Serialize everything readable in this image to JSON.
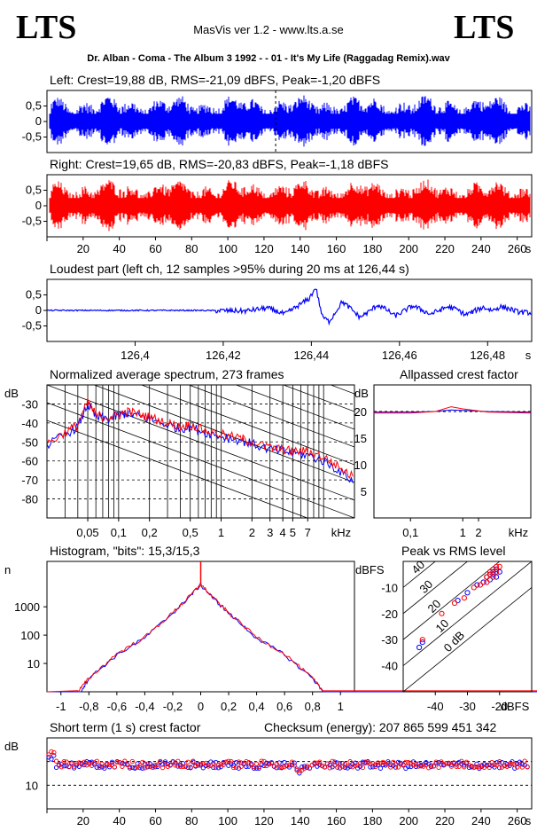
{
  "header": {
    "logo_left": "LTS",
    "logo_right": "LTS",
    "app_title": "MasVis ver 1.2 - www.lts.a.se",
    "file_title": "Dr. Alban - Coma - The Album 3 1992 -  - 01 - It's My Life (Raggadag Remix).wav"
  },
  "colors": {
    "left": "#0000ff",
    "right": "#ff0000",
    "axis": "#000000"
  },
  "panels": {
    "left_wave_title": "Left: Crest=19,88 dB, RMS=-21,09 dBFS, Peak=-1,20 dBFS",
    "right_wave_title": "Right: Crest=19,65 dB, RMS=-20,83 dBFS, Peak=-1,18 dBFS",
    "loudest_title": "Loudest part (left  ch, 12 samples >95% during 20 ms at 126,44 s)",
    "spectrum_title": "Normalized average spectrum, 273 frames",
    "allpass_title": "Allpassed crest factor",
    "histogram_title": "Histogram, \"bits\": 15,3/15,3",
    "peakrms_title": "Peak vs RMS level",
    "shortterm_title": "Short term (1 s) crest factor",
    "checksum_title": "Checksum (energy):  207 865 599 451 342"
  },
  "chart_data": [
    {
      "id": "left_waveform",
      "type": "area",
      "title": "Left: Crest=19,88 dB, RMS=-21,09 dBFS, Peak=-1,20 dBFS",
      "xlim": [
        0,
        268
      ],
      "ylim": [
        -1,
        1
      ],
      "y_ticks": [
        "0,5",
        "0",
        "-0,5"
      ],
      "marker_x": 126.44,
      "series": [
        {
          "name": "Left",
          "color": "#0000ff"
        }
      ]
    },
    {
      "id": "right_waveform",
      "type": "area",
      "title": "Right: Crest=19,65 dB, RMS=-20,83 dBFS, Peak=-1,18 dBFS",
      "xlim": [
        0,
        268
      ],
      "ylim": [
        -1,
        1
      ],
      "x_ticks": [
        "20",
        "40",
        "60",
        "80",
        "100",
        "120",
        "140",
        "160",
        "180",
        "200",
        "220",
        "240",
        "260"
      ],
      "x_unit": "s",
      "y_ticks": [
        "0,5",
        "0",
        "-0,5"
      ],
      "series": [
        {
          "name": "Right",
          "color": "#ff0000"
        }
      ]
    },
    {
      "id": "loudest_part",
      "type": "line",
      "title": "Loudest part (left  ch, 12 samples >95% during 20 ms at 126,44 s)",
      "xlim": [
        126.38,
        126.49
      ],
      "ylim": [
        -1,
        1
      ],
      "x_ticks": [
        "126,4",
        "126,42",
        "126,44",
        "126,46",
        "126,48"
      ],
      "x_unit": "s",
      "y_ticks": [
        "0,5",
        "0",
        "-0,5"
      ],
      "points": [
        [
          126.38,
          0
        ],
        [
          126.4,
          0
        ],
        [
          126.415,
          0.0
        ],
        [
          126.425,
          -0.02
        ],
        [
          126.43,
          0.08
        ],
        [
          126.434,
          -0.12
        ],
        [
          126.437,
          0.15
        ],
        [
          126.4395,
          0.38
        ],
        [
          126.441,
          0.74
        ],
        [
          126.4425,
          -0.2
        ],
        [
          126.444,
          -0.36
        ],
        [
          126.4455,
          -0.05
        ],
        [
          126.447,
          0.28
        ],
        [
          126.449,
          0.05
        ],
        [
          126.451,
          -0.22
        ],
        [
          126.453,
          -0.05
        ],
        [
          126.455,
          0.18
        ],
        [
          126.457,
          0.03
        ],
        [
          126.459,
          -0.18
        ],
        [
          126.461,
          -0.02
        ],
        [
          126.463,
          0.15
        ],
        [
          126.465,
          0.02
        ],
        [
          126.467,
          -0.12
        ],
        [
          126.469,
          0.0
        ],
        [
          126.471,
          0.12
        ],
        [
          126.473,
          0.03
        ],
        [
          126.475,
          -0.14
        ],
        [
          126.477,
          -0.02
        ],
        [
          126.479,
          0.1
        ],
        [
          126.481,
          0.0
        ],
        [
          126.483,
          0.12
        ],
        [
          126.485,
          0.05
        ],
        [
          126.487,
          -0.05
        ],
        [
          126.49,
          -0.08
        ]
      ]
    },
    {
      "id": "average_spectrum",
      "type": "line",
      "title": "Normalized average spectrum, 273 frames",
      "xlabel": "kHz",
      "ylabel": "dB",
      "xlim": [
        0.02,
        20
      ],
      "ylim": [
        -90,
        -20
      ],
      "x_scale": "log",
      "x_ticks": [
        "0,05",
        "0,1",
        "0,2",
        "0,5",
        "1",
        "2",
        "3",
        "4",
        "5",
        "7",
        "kHz"
      ],
      "y_ticks": [
        "-30",
        "-40",
        "-50",
        "-60",
        "-70",
        "-80"
      ],
      "series": [
        {
          "name": "Left",
          "color": "#0000ff",
          "points": [
            [
              0.02,
              -52
            ],
            [
              0.03,
              -46
            ],
            [
              0.04,
              -42
            ],
            [
              0.05,
              -30
            ],
            [
              0.06,
              -37
            ],
            [
              0.08,
              -38
            ],
            [
              0.1,
              -36
            ],
            [
              0.12,
              -35
            ],
            [
              0.15,
              -36
            ],
            [
              0.2,
              -38
            ],
            [
              0.3,
              -41
            ],
            [
              0.4,
              -43
            ],
            [
              0.5,
              -42
            ],
            [
              0.7,
              -45
            ],
            [
              1,
              -47
            ],
            [
              1.5,
              -49
            ],
            [
              2,
              -51
            ],
            [
              3,
              -54
            ],
            [
              4,
              -55
            ],
            [
              5,
              -56
            ],
            [
              7,
              -57
            ],
            [
              10,
              -60
            ],
            [
              14,
              -65
            ],
            [
              20,
              -71
            ]
          ]
        },
        {
          "name": "Right",
          "color": "#ff0000",
          "points": [
            [
              0.02,
              -51
            ],
            [
              0.03,
              -45
            ],
            [
              0.04,
              -41
            ],
            [
              0.05,
              -29
            ],
            [
              0.06,
              -36
            ],
            [
              0.08,
              -37
            ],
            [
              0.1,
              -36
            ],
            [
              0.12,
              -34
            ],
            [
              0.15,
              -35
            ],
            [
              0.2,
              -37
            ],
            [
              0.3,
              -40
            ],
            [
              0.4,
              -42
            ],
            [
              0.5,
              -41
            ],
            [
              0.7,
              -44
            ],
            [
              1,
              -46
            ],
            [
              1.5,
              -48
            ],
            [
              2,
              -50
            ],
            [
              3,
              -53
            ],
            [
              4,
              -54
            ],
            [
              5,
              -55
            ],
            [
              7,
              -55
            ],
            [
              10,
              -58
            ],
            [
              14,
              -63
            ],
            [
              20,
              -69
            ]
          ]
        }
      ]
    },
    {
      "id": "allpassed_crest",
      "type": "line",
      "title": "Allpassed crest factor",
      "xlabel": "kHz",
      "ylabel": "dB",
      "xlim": [
        0.02,
        20
      ],
      "ylim": [
        0,
        25
      ],
      "x_scale": "log",
      "x_ticks": [
        "0,1",
        "1",
        "2",
        "kHz"
      ],
      "y_ticks": [
        "20",
        "15",
        "10",
        "5"
      ],
      "reference_y": 20,
      "series": [
        {
          "name": "Left",
          "color": "#0000ff",
          "points": [
            [
              0.02,
              19.9
            ],
            [
              0.1,
              19.9
            ],
            [
              0.3,
              20.0
            ],
            [
              0.6,
              20.3
            ],
            [
              1,
              20.2
            ],
            [
              3,
              20.0
            ],
            [
              20,
              19.9
            ]
          ]
        },
        {
          "name": "Right",
          "color": "#ff0000",
          "points": [
            [
              0.02,
              19.7
            ],
            [
              0.1,
              19.7
            ],
            [
              0.3,
              20.0
            ],
            [
              0.6,
              20.9
            ],
            [
              1,
              20.5
            ],
            [
              3,
              19.9
            ],
            [
              20,
              19.7
            ]
          ]
        }
      ]
    },
    {
      "id": "histogram",
      "type": "line",
      "title": "Histogram, \"bits\": 15,3/15,3",
      "ylabel": "n",
      "y_scale": "log",
      "xlim": [
        -1.1,
        1.1
      ],
      "ylim": [
        1,
        40000
      ],
      "x_ticks": [
        "-1",
        "-0,8",
        "-0,6",
        "-0,4",
        "-0,2",
        "0",
        "0,2",
        "0,4",
        "0,6",
        "0,8",
        "1"
      ],
      "y_ticks": [
        "1000",
        "100",
        "10"
      ],
      "series": [
        {
          "name": "Left",
          "color": "#0000ff",
          "points": [
            [
              -0.86,
              1
            ],
            [
              -0.8,
              3
            ],
            [
              -0.6,
              20
            ],
            [
              -0.4,
              80
            ],
            [
              -0.2,
              600
            ],
            [
              -0.1,
              1800
            ],
            [
              0,
              6000
            ],
            [
              0.1,
              1800
            ],
            [
              0.2,
              600
            ],
            [
              0.4,
              80
            ],
            [
              0.6,
              20
            ],
            [
              0.8,
              3
            ],
            [
              0.88,
              1
            ]
          ]
        },
        {
          "name": "Right",
          "color": "#ff0000",
          "points": [
            [
              -0.88,
              1
            ],
            [
              -0.8,
              3
            ],
            [
              -0.6,
              22
            ],
            [
              -0.4,
              85
            ],
            [
              -0.2,
              620
            ],
            [
              -0.1,
              1850
            ],
            [
              0,
              6200
            ],
            [
              0.1,
              1850
            ],
            [
              0.2,
              620
            ],
            [
              0.4,
              85
            ],
            [
              0.6,
              22
            ],
            [
              0.8,
              3
            ],
            [
              0.88,
              1
            ]
          ]
        }
      ]
    },
    {
      "id": "peak_vs_rms",
      "type": "scatter",
      "title": "Peak vs RMS level",
      "xlabel": "dBFS",
      "ylabel": "dBFS",
      "xlim": [
        -50,
        -10
      ],
      "ylim": [
        -50,
        0
      ],
      "x_ticks": [
        "-40",
        "-30",
        "-20",
        "dBFS"
      ],
      "y_ticks": [
        "-10",
        "-20",
        "-30",
        "-40"
      ],
      "diagonal_labels": [
        "40",
        "30",
        "20",
        "10",
        "0 dB"
      ],
      "series": [
        {
          "name": "Left",
          "color": "#0000ff",
          "points": [
            [
              -45,
              -33
            ],
            [
              -44,
              -31
            ],
            [
              -33,
              -15
            ],
            [
              -30,
              -12
            ],
            [
              -27,
              -9
            ],
            [
              -25,
              -8
            ],
            [
              -24,
              -6
            ],
            [
              -23,
              -5
            ],
            [
              -22,
              -4
            ],
            [
              -21,
              -3
            ],
            [
              -22,
              -5
            ],
            [
              -23,
              -7
            ],
            [
              -21,
              -6
            ],
            [
              -20,
              -4
            ]
          ]
        },
        {
          "name": "Right",
          "color": "#ff0000",
          "points": [
            [
              -44,
              -30
            ],
            [
              -38,
              -20
            ],
            [
              -34,
              -16
            ],
            [
              -31,
              -14
            ],
            [
              -28,
              -10
            ],
            [
              -26,
              -9
            ],
            [
              -24,
              -6
            ],
            [
              -23,
              -4
            ],
            [
              -22,
              -3
            ],
            [
              -21,
              -2
            ],
            [
              -20,
              -2
            ],
            [
              -22,
              -6
            ],
            [
              -21,
              -4
            ],
            [
              -24,
              -8
            ],
            [
              -23,
              -5
            ]
          ]
        }
      ]
    },
    {
      "id": "short_term_crest",
      "type": "scatter",
      "title": "Short term (1 s) crest factor",
      "ylabel": "dB",
      "xlim": [
        0,
        268
      ],
      "ylim": [
        0,
        30
      ],
      "x_ticks": [
        "20",
        "40",
        "60",
        "80",
        "100",
        "120",
        "140",
        "160",
        "180",
        "200",
        "220",
        "240",
        "260"
      ],
      "x_unit": "s",
      "y_ticks": [
        "10"
      ],
      "ref_lines": [
        10,
        20
      ],
      "series": [
        {
          "name": "Left",
          "color": "#0000ff"
        },
        {
          "name": "Right",
          "color": "#ff0000"
        }
      ]
    }
  ]
}
